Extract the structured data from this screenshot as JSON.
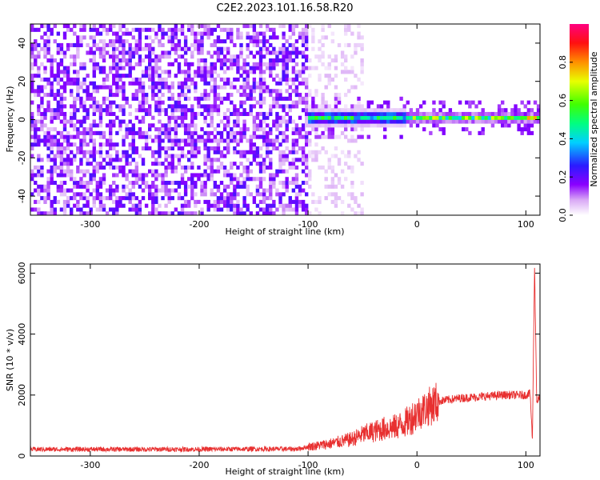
{
  "title": "C2E2.2023.101.16.58.R20",
  "chart_data": [
    {
      "type": "heatmap",
      "xlabel": "Height of straight line (km)",
      "ylabel": "Frequency (Hz)",
      "xlim": [
        -355,
        113
      ],
      "ylim": [
        -50,
        50
      ],
      "x_ticks": [
        -300,
        -200,
        -100,
        0,
        100
      ],
      "x_tick_labels": [
        "-300",
        "-200",
        "-100",
        "0",
        "100"
      ],
      "y_ticks": [
        -40,
        -20,
        0,
        20,
        40
      ],
      "y_tick_labels": [
        "-40",
        "-20",
        "0",
        "20",
        "40"
      ],
      "colorbar": {
        "label": "Normalized spectral amplitude",
        "range": [
          0.0,
          1.0
        ],
        "ticks": [
          0.0,
          0.2,
          0.4,
          0.6,
          0.8
        ],
        "tick_labels": [
          "0.0",
          "0.2",
          "0.4",
          "0.6",
          "0.8"
        ],
        "colormap": "rainbow (white→violet→blue→cyan→green→yellow→red)"
      },
      "features": [
        {
          "x_range": [
            -355,
            -100
          ],
          "freq_range": [
            -50,
            50
          ],
          "amplitude": 0.1
        },
        {
          "x_range": [
            -100,
            -50
          ],
          "freq_range": [
            -50,
            50
          ],
          "amplitude": 0.03
        },
        {
          "x_range": [
            -100,
            -10
          ],
          "freq_center": 1,
          "freq_halfwidth": 4,
          "amplitude": 0.45
        },
        {
          "x_range": [
            -10,
            113
          ],
          "freq_center": 1,
          "freq_halfwidth": 2,
          "amplitude": 0.55
        },
        {
          "x_range": [
            85,
            113
          ],
          "freq_center": 1.5,
          "freq_halfwidth": 1,
          "amplitude": 0.95
        }
      ]
    },
    {
      "type": "line",
      "xlabel": "Height of straight line (km)",
      "ylabel": "SNR (10 * v/v)",
      "xlim": [
        -355,
        113
      ],
      "ylim": [
        0,
        6300
      ],
      "x_ticks": [
        -300,
        -200,
        -100,
        0,
        100
      ],
      "x_tick_labels": [
        "-300",
        "-200",
        "-100",
        "0",
        "100"
      ],
      "y_ticks": [
        0,
        2000,
        4000,
        6000
      ],
      "y_tick_labels": [
        "0",
        "2000",
        "4000",
        "6000"
      ],
      "series": [
        {
          "color": "#e83030",
          "x": [
            -355,
            -300,
            -250,
            -200,
            -150,
            -110,
            -100,
            -80,
            -60,
            -50,
            -40,
            -30,
            -20,
            -10,
            0,
            5,
            10,
            20,
            40,
            60,
            80,
            100,
            104,
            106,
            108,
            110,
            113
          ],
          "y": [
            220,
            220,
            220,
            220,
            230,
            230,
            300,
            400,
            550,
            700,
            800,
            900,
            950,
            1100,
            1400,
            1500,
            1600,
            1800,
            1900,
            1950,
            2000,
            2000,
            2050,
            500,
            6300,
            1800,
            1900
          ]
        }
      ]
    }
  ]
}
